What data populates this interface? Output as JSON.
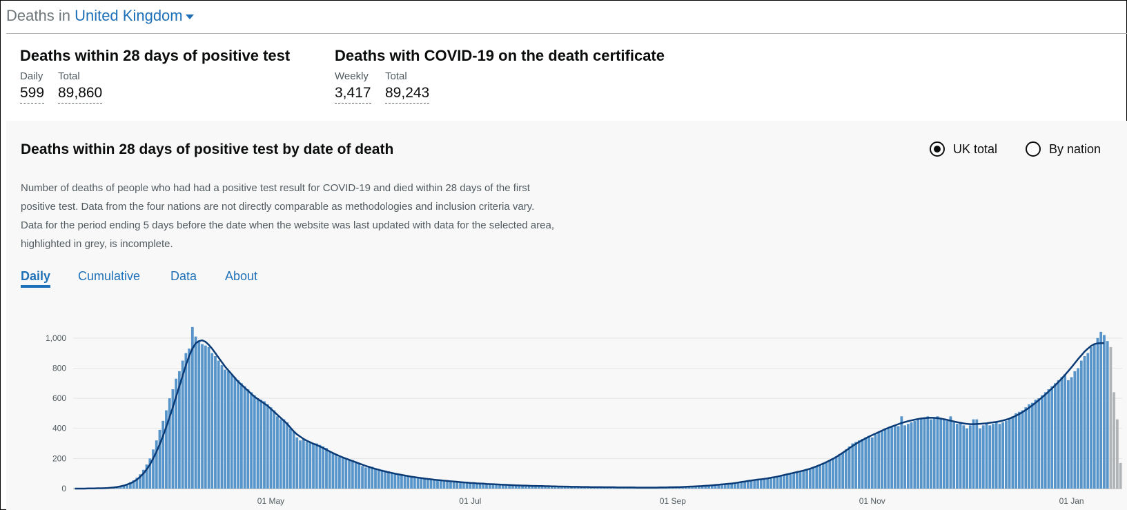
{
  "header": {
    "prefix": "Deaths in",
    "area": "United Kingdom"
  },
  "headlines": [
    {
      "title": "Deaths within 28 days of positive test",
      "metrics": [
        {
          "label": "Daily",
          "value": "599"
        },
        {
          "label": "Total",
          "value": "89,860"
        }
      ]
    },
    {
      "title": "Deaths with COVID-19 on the death certificate",
      "metrics": [
        {
          "label": "Weekly",
          "value": "3,417"
        },
        {
          "label": "Total",
          "value": "89,243"
        }
      ]
    }
  ],
  "panel": {
    "title": "Deaths within 28 days of positive test by date of death",
    "radios": [
      "UK total",
      "By nation"
    ],
    "selected_radio": 0,
    "description": [
      "Number of deaths of people who had had a positive test result for COVID-19 and died within 28 days of the first",
      "positive test. Data from the four nations are not directly comparable as methodologies and inclusion criteria vary.",
      "Data for the period ending 5 days before the date when the website was last updated with data for the selected area,",
      "highlighted in grey, is incomplete."
    ],
    "tabs": [
      "Daily",
      "Cumulative",
      "Data",
      "About"
    ],
    "active_tab": 0
  },
  "chart_data": {
    "type": "bar",
    "categories": [
      null,
      null,
      null,
      null,
      null,
      null,
      null,
      null,
      null,
      null,
      null,
      null,
      null,
      null,
      null,
      null,
      null,
      null,
      null,
      null,
      null,
      null,
      null,
      null,
      null,
      null,
      null,
      null,
      null,
      null,
      null,
      null,
      null,
      null,
      null,
      null,
      null,
      null,
      null,
      null,
      null,
      null,
      null,
      null,
      null,
      null,
      null,
      null,
      null,
      null,
      null,
      null,
      null,
      null,
      null,
      null,
      null,
      null,
      null,
      null,
      "01 May",
      null,
      null,
      null,
      null,
      null,
      null,
      null,
      null,
      null,
      null,
      null,
      null,
      null,
      null,
      null,
      null,
      null,
      null,
      null,
      null,
      null,
      null,
      null,
      null,
      null,
      null,
      null,
      null,
      null,
      null,
      null,
      null,
      null,
      null,
      null,
      null,
      null,
      null,
      null,
      null,
      null,
      null,
      null,
      null,
      null,
      null,
      null,
      null,
      null,
      null,
      null,
      null,
      null,
      null,
      null,
      null,
      null,
      null,
      null,
      null,
      "01 Jul",
      null,
      null,
      null,
      null,
      null,
      null,
      null,
      null,
      null,
      null,
      null,
      null,
      null,
      null,
      null,
      null,
      null,
      null,
      null,
      null,
      null,
      null,
      null,
      null,
      null,
      null,
      null,
      null,
      null,
      null,
      null,
      null,
      null,
      null,
      null,
      null,
      null,
      null,
      null,
      null,
      null,
      null,
      null,
      null,
      null,
      null,
      null,
      null,
      null,
      null,
      null,
      null,
      null,
      null,
      null,
      null,
      null,
      null,
      null,
      null,
      null,
      "01 Sep",
      null,
      null,
      null,
      null,
      null,
      null,
      null,
      null,
      null,
      null,
      null,
      null,
      null,
      null,
      null,
      null,
      null,
      null,
      null,
      null,
      null,
      null,
      null,
      null,
      null,
      null,
      null,
      null,
      null,
      null,
      null,
      null,
      null,
      null,
      null,
      null,
      null,
      null,
      null,
      null,
      null,
      null,
      null,
      null,
      null,
      null,
      null,
      null,
      null,
      null,
      null,
      null,
      null,
      null,
      null,
      null,
      null,
      null,
      null,
      null,
      "01 Nov",
      null,
      null,
      null,
      null,
      null,
      null,
      null,
      null,
      null,
      null,
      null,
      null,
      null,
      null,
      null,
      null,
      null,
      null,
      null,
      null,
      null,
      null,
      null,
      null,
      null,
      null,
      null,
      null,
      null,
      null,
      null,
      null,
      null,
      null,
      null,
      null,
      null,
      null,
      null,
      null,
      null,
      null,
      null,
      null,
      null,
      null,
      null,
      null,
      null,
      null,
      null,
      null,
      null,
      null,
      null,
      null,
      null,
      null,
      null,
      null,
      "01 Jan",
      null,
      null,
      null,
      null,
      null,
      null,
      null,
      null,
      null,
      null,
      null,
      null,
      null,
      null,
      null
    ],
    "series": [
      {
        "type": "bar",
        "color": "#5694ca",
        "values": [
          0,
          0,
          0,
          1,
          1,
          2,
          1,
          2,
          3,
          4,
          5,
          7,
          9,
          12,
          18,
          24,
          32,
          42,
          55,
          72,
          95,
          125,
          160,
          200,
          260,
          320,
          390,
          450,
          520,
          600,
          660,
          730,
          780,
          850,
          900,
          930,
          1073,
          1010,
          980,
          960,
          950,
          940,
          900,
          880,
          850,
          820,
          790,
          780,
          760,
          740,
          720,
          700,
          680,
          660,
          640,
          620,
          600,
          590,
          580,
          560,
          540,
          520,
          480,
          460,
          460,
          440,
          400,
          380,
          340,
          320,
          330,
          310,
          305,
          300,
          300,
          290,
          280,
          270,
          250,
          240,
          230,
          210,
          210,
          200,
          195,
          190,
          180,
          170,
          150,
          140,
          150,
          145,
          135,
          130,
          125,
          120,
          115,
          108,
          100,
          96,
          92,
          88,
          85,
          80,
          76,
          74,
          70,
          68,
          65,
          62,
          60,
          58,
          55,
          52,
          50,
          48,
          46,
          44,
          42,
          40,
          40,
          38,
          36,
          35,
          34,
          32,
          30,
          30,
          28,
          28,
          26,
          25,
          24,
          24,
          22,
          22,
          20,
          20,
          19,
          18,
          18,
          17,
          17,
          16,
          16,
          15,
          15,
          14,
          14,
          13,
          13,
          13,
          12,
          12,
          12,
          11,
          11,
          11,
          10,
          10,
          10,
          10,
          9,
          9,
          9,
          9,
          8,
          8,
          8,
          8,
          8,
          8,
          7,
          7,
          7,
          7,
          7,
          7,
          7,
          8,
          8,
          8,
          9,
          9,
          10,
          10,
          11,
          12,
          13,
          14,
          15,
          16,
          18,
          20,
          20,
          22,
          24,
          26,
          28,
          30,
          32,
          34,
          36,
          40,
          45,
          48,
          52,
          55,
          58,
          60,
          62,
          65,
          68,
          72,
          76,
          80,
          85,
          90,
          95,
          100,
          105,
          110,
          115,
          120,
          125,
          130,
          140,
          150,
          160,
          170,
          180,
          190,
          200,
          215,
          230,
          240,
          260,
          280,
          300,
          310,
          320,
          330,
          340,
          350,
          340,
          360,
          370,
          380,
          390,
          400,
          410,
          420,
          415,
          480,
          420,
          430,
          440,
          450,
          460,
          470,
          470,
          480,
          460,
          470,
          480,
          470,
          460,
          450,
          480,
          440,
          430,
          440,
          420,
          400,
          420,
          460,
          460,
          400,
          420,
          430,
          420,
          430,
          440,
          430,
          440,
          450,
          460,
          480,
          500,
          510,
          520,
          540,
          560,
          570,
          590,
          600,
          620,
          640,
          660,
          680,
          700,
          720,
          740,
          760,
          720,
          740,
          780,
          800,
          850,
          880,
          900,
          940,
          960,
          1000,
          1041,
          1020,
          980,
          940,
          640,
          460,
          170
        ],
        "incomplete": {
          "last": 4,
          "color": "#b1b4b6"
        }
      },
      {
        "type": "line",
        "color": "#0b3b76",
        "values": [
          0,
          0,
          0,
          0,
          1,
          1,
          1,
          2,
          2,
          3,
          4,
          6,
          8,
          11,
          15,
          20,
          27,
          35,
          46,
          60,
          78,
          100,
          128,
          160,
          200,
          245,
          295,
          350,
          410,
          475,
          540,
          610,
          680,
          750,
          820,
          880,
          930,
          965,
          980,
          985,
          975,
          955,
          930,
          900,
          870,
          840,
          810,
          785,
          760,
          735,
          710,
          690,
          670,
          650,
          630,
          610,
          595,
          580,
          565,
          550,
          530,
          510,
          490,
          470,
          450,
          430,
          405,
          380,
          360,
          345,
          330,
          318,
          308,
          298,
          290,
          280,
          270,
          258,
          247,
          236,
          226,
          216,
          207,
          199,
          191,
          183,
          175,
          167,
          159,
          151,
          144,
          137,
          131,
          125,
          119,
          114,
          109,
          104,
          99,
          95,
          91,
          87,
          83,
          79,
          76,
          73,
          70,
          67,
          64,
          62,
          59,
          57,
          55,
          53,
          51,
          49,
          47,
          45,
          43,
          41,
          40,
          38,
          37,
          35,
          34,
          33,
          31,
          30,
          29,
          28,
          27,
          26,
          25,
          24,
          23,
          22,
          21,
          20,
          20,
          19,
          18,
          18,
          17,
          17,
          16,
          16,
          15,
          15,
          14,
          14,
          13,
          13,
          12,
          12,
          12,
          11,
          11,
          11,
          10,
          10,
          10,
          10,
          9,
          9,
          9,
          9,
          8,
          8,
          8,
          8,
          8,
          8,
          7,
          7,
          7,
          7,
          7,
          7,
          7,
          8,
          8,
          8,
          9,
          9,
          10,
          10,
          11,
          12,
          13,
          14,
          15,
          16,
          17,
          19,
          20,
          22,
          24,
          26,
          28,
          30,
          32,
          34,
          37,
          40,
          44,
          47,
          51,
          54,
          57,
          60,
          62,
          65,
          68,
          72,
          76,
          80,
          85,
          90,
          95,
          100,
          105,
          110,
          115,
          120,
          126,
          132,
          140,
          148,
          157,
          166,
          176,
          187,
          198,
          210,
          224,
          238,
          253,
          268,
          283,
          297,
          310,
          322,
          334,
          345,
          355,
          365,
          375,
          385,
          395,
          404,
          412,
          420,
          428,
          436,
          442,
          448,
          453,
          458,
          462,
          466,
          468,
          470,
          471,
          470,
          468,
          465,
          461,
          456,
          451,
          446,
          441,
          437,
          433,
          430,
          428,
          428,
          429,
          430,
          432,
          434,
          437,
          440,
          443,
          447,
          452,
          458,
          465,
          474,
          484,
          495,
          508,
          522,
          537,
          553,
          570,
          588,
          606,
          625,
          645,
          665,
          686,
          708,
          731,
          755,
          780,
          806,
          833,
          860,
          885,
          910,
          930,
          948,
          960,
          965,
          966,
          966,
          null,
          null,
          null,
          null,
          null
        ]
      }
    ],
    "ylim": [
      0,
      1100
    ],
    "yticks": [
      0,
      200,
      400,
      600,
      800,
      {
        "value": 1000,
        "label": "1,000"
      }
    ],
    "grid": true
  }
}
